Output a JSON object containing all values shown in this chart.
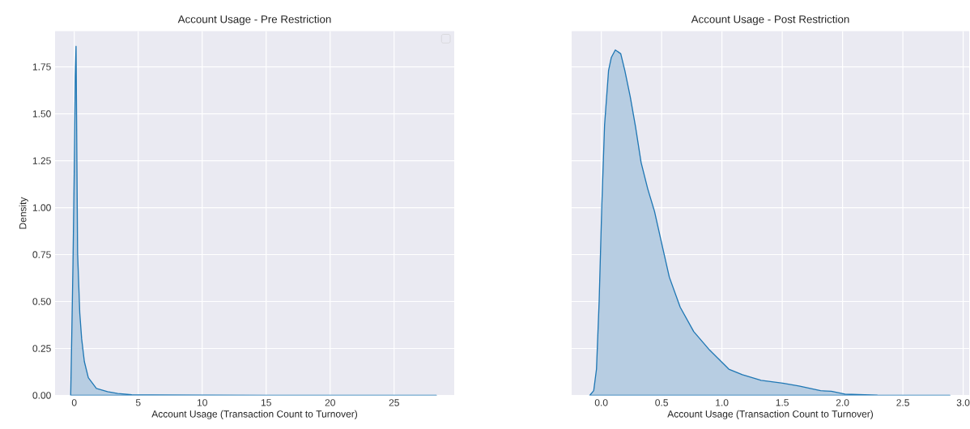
{
  "chart_data": [
    {
      "type": "area",
      "title": "Account Usage - Pre Restriction",
      "xlabel": "Account Usage (Transaction Count to Turnover)",
      "ylabel": "Density",
      "series": [
        {
          "color": "#1f77b4",
          "x": [
            -0.28,
            -0.2,
            -0.1,
            0,
            0.08,
            0.14,
            0.26,
            0.43,
            0.58,
            0.79,
            1.1,
            1.73,
            2.6,
            3.4,
            4.5,
            6,
            10,
            15,
            20,
            25,
            28.3
          ],
          "values": [
            0,
            0.3,
            0.7,
            1.2,
            1.7,
            1.86,
            0.76,
            0.44,
            0.3,
            0.18,
            0.094,
            0.037,
            0.02,
            0.01,
            0.004,
            0.002,
            0.001,
            0,
            0,
            0,
            0
          ]
        }
      ],
      "xlim": [
        -1.5,
        29.7
      ],
      "xticks": [
        0,
        5,
        10,
        15,
        20,
        25
      ],
      "ylim": [
        0,
        1.94
      ],
      "yticks": [
        {
          "value": 0,
          "label": "0.00"
        },
        {
          "value": 0.25,
          "label": "0.25"
        },
        {
          "value": 0.5,
          "label": "0.50"
        },
        {
          "value": 0.75,
          "label": "0.75"
        },
        {
          "value": 1,
          "label": "1.00"
        },
        {
          "value": 1.25,
          "label": "1.25"
        },
        {
          "value": 1.5,
          "label": "1.50"
        },
        {
          "value": 1.75,
          "label": "1.75"
        }
      ],
      "grid": true
    },
    {
      "type": "area",
      "title": "Account Usage - Post Restriction",
      "xlabel": "Account Usage (Transaction Count to Turnover)",
      "series": [
        {
          "color": "#1f77b4",
          "x": [
            -0.096,
            -0.063,
            -0.04,
            -0.018,
            0.004,
            0.027,
            0.06,
            0.083,
            0.116,
            0.161,
            0.195,
            0.24,
            0.284,
            0.33,
            0.385,
            0.441,
            0.497,
            0.564,
            0.654,
            0.766,
            0.9,
            1.057,
            1.169,
            1.325,
            1.504,
            1.639,
            1.818,
            1.907,
            2.02,
            2.29,
            2.89
          ],
          "values": [
            0,
            0.025,
            0.14,
            0.5,
            1.01,
            1.44,
            1.73,
            1.8,
            1.84,
            1.82,
            1.73,
            1.59,
            1.43,
            1.24,
            1.1,
            0.98,
            0.82,
            0.63,
            0.47,
            0.34,
            0.24,
            0.14,
            0.11,
            0.08,
            0.065,
            0.05,
            0.025,
            0.022,
            0.007,
            0.001,
            0
          ]
        }
      ],
      "xlim": [
        -0.246,
        3.05
      ],
      "xticks": [
        {
          "value": 0,
          "label": "0.0"
        },
        {
          "value": 0.5,
          "label": "0.5"
        },
        {
          "value": 1,
          "label": "1.0"
        },
        {
          "value": 1.5,
          "label": "1.5"
        },
        {
          "value": 2,
          "label": "2.0"
        },
        {
          "value": 2.5,
          "label": "2.5"
        },
        {
          "value": 3,
          "label": "3.0"
        }
      ],
      "ylim": [
        0,
        1.94
      ],
      "yticks": [
        {
          "value": 0,
          "label": null
        },
        {
          "value": 0.25,
          "label": null
        },
        {
          "value": 0.5,
          "label": null
        },
        {
          "value": 0.75,
          "label": null
        },
        {
          "value": 1,
          "label": null
        },
        {
          "value": 1.25,
          "label": null
        },
        {
          "value": 1.5,
          "label": null
        },
        {
          "value": 1.75,
          "label": null
        }
      ],
      "tick_labels": "x",
      "grid": true
    }
  ]
}
